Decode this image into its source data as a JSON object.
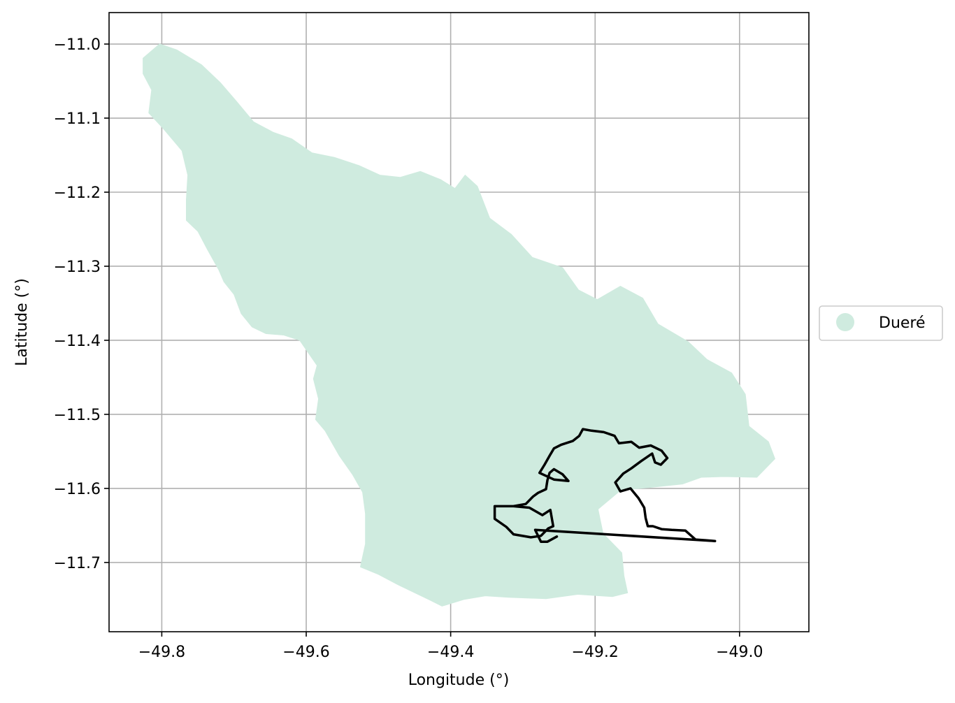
{
  "chart_data": {
    "type": "map",
    "xlabel": "Longitude (°)",
    "ylabel": "Latitude (°)",
    "xlim": [
      -49.873,
      -48.904
    ],
    "ylim": [
      -11.7935,
      -10.9575
    ],
    "xticks": [
      -49.8,
      -49.6,
      -49.4,
      -49.2,
      -49.0
    ],
    "xtick_labels": [
      "−49.8",
      "−49.6",
      "−49.4",
      "−49.2",
      "−49.0"
    ],
    "yticks": [
      -11.0,
      -11.1,
      -11.2,
      -11.3,
      -11.4,
      -11.5,
      -11.6,
      -11.7
    ],
    "ytick_labels": [
      "−11.0",
      "−11.1",
      "−11.2",
      "−11.3",
      "−11.4",
      "−11.5",
      "−11.6",
      "−11.7"
    ],
    "grid": true,
    "legend": {
      "position": "center-right-outside",
      "entries": [
        {
          "label": "Dueré",
          "color": "#cfebdf",
          "marker": "circle"
        }
      ]
    },
    "layers": [
      {
        "name": "Dueré",
        "kind": "filled-polygon",
        "fill": "#cfebdf",
        "coordinates": [
          [
            -49.826,
            -11.019
          ],
          [
            -49.803,
            -11.0
          ],
          [
            -49.779,
            -11.008
          ],
          [
            -49.745,
            -11.028
          ],
          [
            -49.719,
            -11.052
          ],
          [
            -49.697,
            -11.077
          ],
          [
            -49.673,
            -11.105
          ],
          [
            -49.646,
            -11.119
          ],
          [
            -49.62,
            -11.128
          ],
          [
            -49.592,
            -11.147
          ],
          [
            -49.561,
            -11.153
          ],
          [
            -49.527,
            -11.164
          ],
          [
            -49.498,
            -11.177
          ],
          [
            -49.47,
            -11.18
          ],
          [
            -49.442,
            -11.172
          ],
          [
            -49.414,
            -11.183
          ],
          [
            -49.394,
            -11.195
          ],
          [
            -49.38,
            -11.177
          ],
          [
            -49.363,
            -11.192
          ],
          [
            -49.346,
            -11.235
          ],
          [
            -49.316,
            -11.257
          ],
          [
            -49.287,
            -11.288
          ],
          [
            -49.245,
            -11.302
          ],
          [
            -49.223,
            -11.332
          ],
          [
            -49.197,
            -11.345
          ],
          [
            -49.165,
            -11.327
          ],
          [
            -49.134,
            -11.343
          ],
          [
            -49.113,
            -11.378
          ],
          [
            -49.071,
            -11.402
          ],
          [
            -49.045,
            -11.426
          ],
          [
            -49.011,
            -11.444
          ],
          [
            -48.992,
            -11.473
          ],
          [
            -48.987,
            -11.516
          ],
          [
            -48.96,
            -11.537
          ],
          [
            -48.951,
            -11.56
          ],
          [
            -48.976,
            -11.585
          ],
          [
            -49.022,
            -11.584
          ],
          [
            -49.053,
            -11.585
          ],
          [
            -49.079,
            -11.594
          ],
          [
            -49.127,
            -11.599
          ],
          [
            -49.164,
            -11.602
          ],
          [
            -49.196,
            -11.628
          ],
          [
            -49.189,
            -11.661
          ],
          [
            -49.163,
            -11.687
          ],
          [
            -49.16,
            -11.718
          ],
          [
            -49.155,
            -11.741
          ],
          [
            -49.176,
            -11.746
          ],
          [
            -49.224,
            -11.743
          ],
          [
            -49.268,
            -11.749
          ],
          [
            -49.32,
            -11.747
          ],
          [
            -49.352,
            -11.745
          ],
          [
            -49.382,
            -11.75
          ],
          [
            -49.412,
            -11.759
          ],
          [
            -49.428,
            -11.751
          ],
          [
            -49.473,
            -11.73
          ],
          [
            -49.5,
            -11.716
          ],
          [
            -49.525,
            -11.706
          ],
          [
            -49.518,
            -11.675
          ],
          [
            -49.518,
            -11.634
          ],
          [
            -49.522,
            -11.605
          ],
          [
            -49.536,
            -11.581
          ],
          [
            -49.554,
            -11.556
          ],
          [
            -49.574,
            -11.522
          ],
          [
            -49.587,
            -11.507
          ],
          [
            -49.583,
            -11.479
          ],
          [
            -49.59,
            -11.452
          ],
          [
            -49.585,
            -11.434
          ],
          [
            -49.609,
            -11.4
          ],
          [
            -49.631,
            -11.393
          ],
          [
            -49.656,
            -11.391
          ],
          [
            -49.675,
            -11.382
          ],
          [
            -49.69,
            -11.364
          ],
          [
            -49.7,
            -11.338
          ],
          [
            -49.714,
            -11.321
          ],
          [
            -49.721,
            -11.305
          ],
          [
            -49.737,
            -11.277
          ],
          [
            -49.75,
            -11.253
          ],
          [
            -49.766,
            -11.238
          ],
          [
            -49.766,
            -11.21
          ],
          [
            -49.764,
            -11.177
          ],
          [
            -49.772,
            -11.144
          ],
          [
            -49.798,
            -11.114
          ],
          [
            -49.818,
            -11.093
          ],
          [
            -49.814,
            -11.062
          ],
          [
            -49.826,
            -11.04
          ]
        ]
      },
      {
        "name": "outline",
        "kind": "line",
        "stroke": "#000000",
        "coordinates": [
          [
            -49.313,
            -11.624
          ],
          [
            -49.291,
            -11.626
          ],
          [
            -49.273,
            -11.636
          ],
          [
            -49.262,
            -11.629
          ],
          [
            -49.258,
            -11.651
          ],
          [
            -49.265,
            -11.654
          ],
          [
            -49.275,
            -11.664
          ],
          [
            -49.289,
            -11.666
          ],
          [
            -49.313,
            -11.662
          ],
          [
            -49.323,
            -11.652
          ],
          [
            -49.339,
            -11.641
          ],
          [
            -49.339,
            -11.624
          ],
          [
            -49.313,
            -11.624
          ],
          [
            -49.296,
            -11.621
          ],
          [
            -49.286,
            -11.611
          ],
          [
            -49.279,
            -11.606
          ],
          [
            -49.268,
            -11.601
          ],
          [
            -49.266,
            -11.589
          ],
          [
            -49.263,
            -11.579
          ],
          [
            -49.257,
            -11.574
          ],
          [
            -49.245,
            -11.581
          ],
          [
            -49.237,
            -11.59
          ],
          [
            -49.257,
            -11.588
          ],
          [
            -49.277,
            -11.579
          ],
          [
            -49.27,
            -11.568
          ],
          [
            -49.263,
            -11.556
          ],
          [
            -49.257,
            -11.546
          ],
          [
            -49.247,
            -11.541
          ],
          [
            -49.231,
            -11.536
          ],
          [
            -49.222,
            -11.529
          ],
          [
            -49.217,
            -11.52
          ],
          [
            -49.205,
            -11.522
          ],
          [
            -49.188,
            -11.524
          ],
          [
            -49.173,
            -11.529
          ],
          [
            -49.167,
            -11.539
          ],
          [
            -49.15,
            -11.537
          ],
          [
            -49.139,
            -11.545
          ],
          [
            -49.123,
            -11.542
          ],
          [
            -49.108,
            -11.549
          ],
          [
            -49.1,
            -11.559
          ],
          [
            -49.109,
            -11.568
          ],
          [
            -49.117,
            -11.565
          ],
          [
            -49.121,
            -11.553
          ],
          [
            -49.136,
            -11.563
          ],
          [
            -49.15,
            -11.573
          ],
          [
            -49.161,
            -11.58
          ],
          [
            -49.172,
            -11.592
          ],
          [
            -49.165,
            -11.604
          ],
          [
            -49.151,
            -11.6
          ],
          [
            -49.14,
            -11.613
          ],
          [
            -49.132,
            -11.626
          ],
          [
            -49.13,
            -11.64
          ],
          [
            -49.127,
            -11.651
          ],
          [
            -49.12,
            -11.651
          ],
          [
            -49.108,
            -11.655
          ],
          [
            -49.094,
            -11.656
          ],
          [
            -49.075,
            -11.657
          ],
          [
            -49.061,
            -11.669
          ],
          [
            -49.047,
            -11.67
          ],
          [
            -49.034,
            -11.671
          ],
          [
            -49.283,
            -11.656
          ],
          [
            -49.275,
            -11.672
          ],
          [
            -49.266,
            -11.672
          ],
          [
            -49.253,
            -11.665
          ]
        ]
      }
    ]
  }
}
